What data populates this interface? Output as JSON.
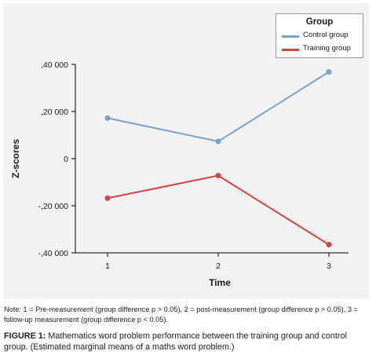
{
  "chart_data": {
    "type": "line",
    "title": "",
    "xlabel": "Time",
    "ylabel": "Z-scores",
    "categories": [
      "1",
      "2",
      "3"
    ],
    "yticks": [
      ",40 000",
      ",20 000",
      "0",
      "-,20 000",
      "-,40 000"
    ],
    "ylim": [
      -0.4,
      0.4
    ],
    "ytick_values": [
      0.4,
      0.2,
      0,
      -0.2,
      -0.4
    ],
    "legend": {
      "title": "Group",
      "placement": "top-right"
    },
    "grid": false,
    "series": [
      {
        "name": "Control group",
        "color": "#7d9fd0",
        "values": [
          0.172,
          0.073,
          0.368
        ]
      },
      {
        "name": "Training group",
        "color": "#d24447",
        "values": [
          -0.168,
          -0.072,
          -0.365
        ]
      }
    ]
  },
  "note": "Note: 1 = Pre-measurement (group difference p > 0.05), 2 = post-measurement (group difference p > 0.05), 3 = follow-up measurement (group difference p < 0.05).",
  "caption": {
    "label": "FIGURE 1:",
    "text": " Mathematics word problem performance between the training group and control group. (Estimated marginal means of a maths word problem.)"
  }
}
